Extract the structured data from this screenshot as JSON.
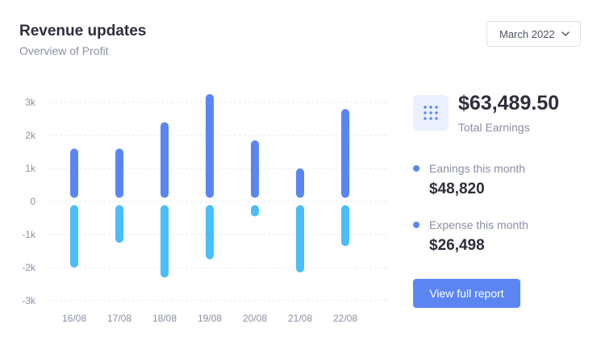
{
  "header": {
    "title": "Revenue updates",
    "subtitle": "Overview of Profit",
    "date_select": "March 2022"
  },
  "summary": {
    "total_value": "$63,489.50",
    "total_label": "Total Earnings",
    "icon": "grid-dots-icon",
    "earnings_label": "Eanings this month",
    "earnings_value": "$48,820",
    "expense_label": "Expense this month",
    "expense_value": "$26,498",
    "report_button": "View full report"
  },
  "colors": {
    "primary": "#5b86f2",
    "secondary": "#49bef8",
    "accent_bg": "#eaf0fe"
  },
  "chart_data": {
    "type": "bar",
    "categories": [
      "16/08",
      "17/08",
      "18/08",
      "19/08",
      "20/08",
      "21/08",
      "22/08"
    ],
    "series": [
      {
        "values": [
          1600,
          1600,
          2400,
          3250,
          1850,
          1000,
          2800
        ],
        "color": "#5b86f2"
      },
      {
        "values": [
          -2000,
          -1250,
          -2300,
          -1750,
          -450,
          -2150,
          -1350
        ],
        "color": "#49bef8"
      }
    ],
    "yticks": [
      "3k",
      "2k",
      "1k",
      "0",
      "-1k",
      "-2k",
      "-3k"
    ],
    "ylim": [
      -3000,
      3000
    ],
    "grid": true
  }
}
